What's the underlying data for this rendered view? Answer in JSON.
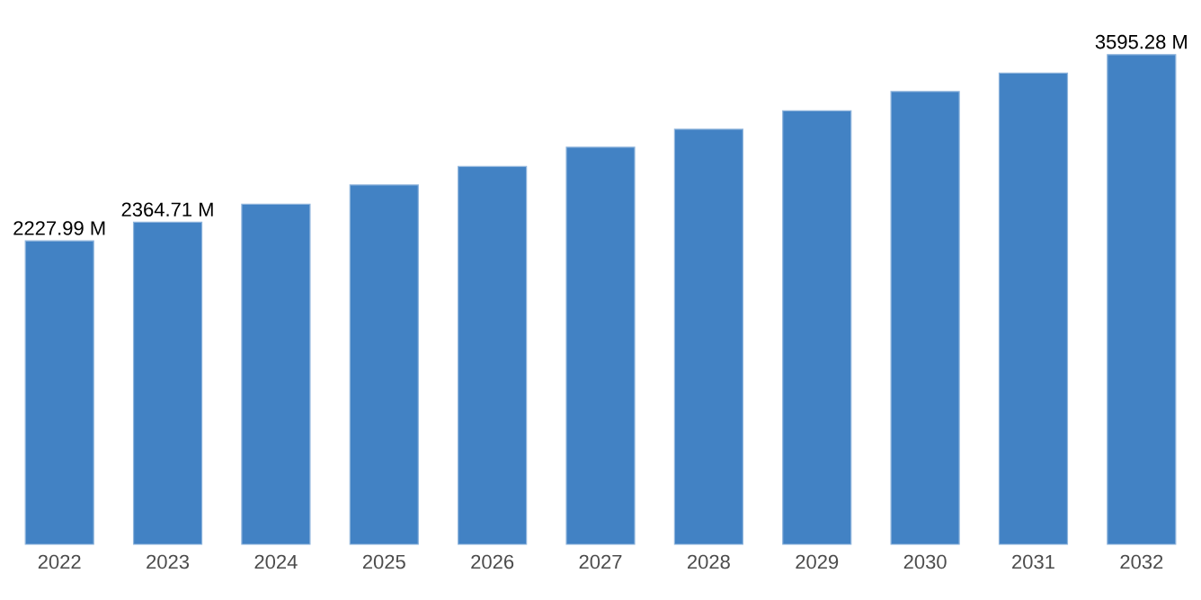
{
  "chart_data": {
    "type": "bar",
    "categories": [
      "2022",
      "2023",
      "2024",
      "2025",
      "2026",
      "2027",
      "2028",
      "2029",
      "2030",
      "2031",
      "2032"
    ],
    "values": [
      2227.99,
      2364.71,
      2497,
      2638,
      2774,
      2915,
      3047,
      3183,
      3324,
      3460,
      3595.28
    ],
    "value_labels": [
      "2227.99 M",
      "2364.71 M",
      null,
      null,
      null,
      null,
      null,
      null,
      null,
      null,
      "3595.28 M"
    ],
    "color": "#4282c4",
    "tick_labels": "x"
  }
}
